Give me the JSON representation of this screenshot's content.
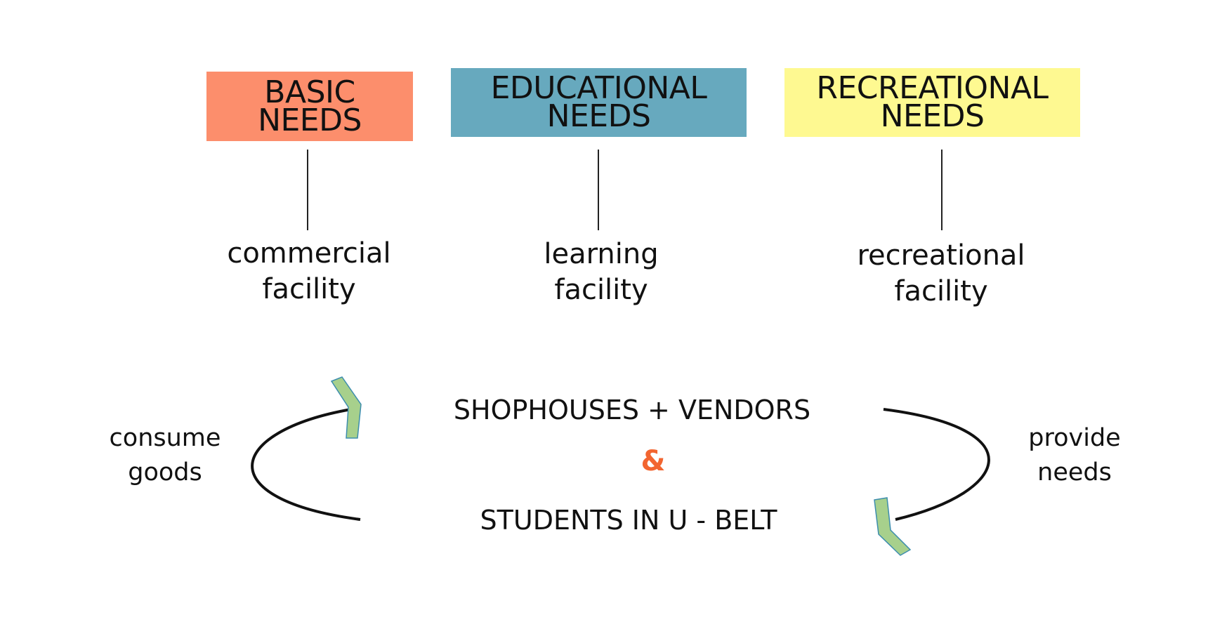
{
  "needs": [
    {
      "line1": "BASIC",
      "line2": "NEEDS",
      "color": "#FC8E6C"
    },
    {
      "line1": "EDUCATIONAL",
      "line2": "NEEDS",
      "color": "#67A9BE"
    },
    {
      "line1": "RECREATIONAL",
      "line2": "NEEDS",
      "color": "#FEF991"
    }
  ],
  "facilities": [
    {
      "line1": "commercial",
      "line2": "facility"
    },
    {
      "line1": "learning",
      "line2": "facility"
    },
    {
      "line1": "recreational",
      "line2": "facility"
    }
  ],
  "cycle": {
    "top": "SHOPHOUSES + VENDORS",
    "connector": "&",
    "connector_color": "#F26530",
    "bottom": "STUDENTS IN U - BELT",
    "left_label": {
      "line1": "consume",
      "line2": "goods"
    },
    "right_label": {
      "line1": "provide",
      "line2": "needs"
    },
    "arrow_fill": "#A7D08C",
    "arrow_stroke": "#3C8DAE"
  }
}
